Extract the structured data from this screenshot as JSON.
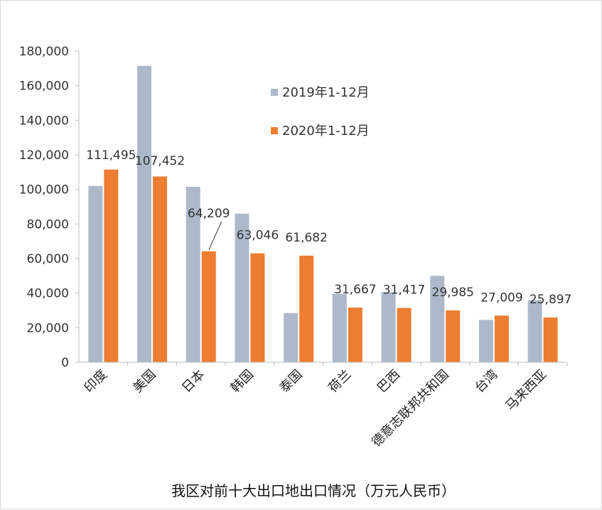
{
  "chart_data": {
    "type": "bar",
    "title": "我区对前十大出口地出口情况（万元人民币）",
    "categories": [
      "印度",
      "美国",
      "日本",
      "韩国",
      "泰国",
      "荷兰",
      "巴西",
      "德意志联邦共和国",
      "台湾",
      "马来西亚"
    ],
    "series": [
      {
        "name": "2019年1-12月",
        "color": "#adb9ca",
        "values": [
          102000,
          171500,
          101500,
          86000,
          28500,
          39500,
          40500,
          50000,
          24500,
          36000
        ]
      },
      {
        "name": "2020年1-12月",
        "color": "#ed7d31",
        "values": [
          111495,
          107452,
          64209,
          63046,
          61682,
          31667,
          31417,
          29985,
          27009,
          25897
        ]
      }
    ],
    "data_labels": [
      "111,495",
      "107,452",
      "64,209",
      "63,046",
      "61,682",
      "31,667",
      "31,417",
      "29,985",
      "27,009",
      "25,897"
    ],
    "y_ticks": [
      "0",
      "20,000",
      "40,000",
      "60,000",
      "80,000",
      "100,000",
      "120,000",
      "140,000",
      "160,000",
      "180,000"
    ],
    "ylim": [
      0,
      180000
    ],
    "grid": false,
    "legend_position": "top-right, inside plot"
  }
}
